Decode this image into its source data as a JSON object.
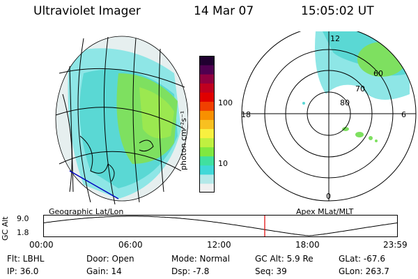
{
  "header": {
    "instrument": "Ultraviolet Imager",
    "date": "14 Mar 07",
    "time": "15:05:02 UT"
  },
  "left_panel": {
    "caption": "Geographic Lat/Lon"
  },
  "right_panel": {
    "caption": "Apex MLat/MLT",
    "mlt_labels": {
      "top": "12",
      "left": "18",
      "right": "6",
      "bottom": "0"
    },
    "lat_labels": [
      "60",
      "70",
      "80"
    ]
  },
  "colorbar": {
    "unit_label": "photon cm⁻²s⁻¹",
    "ticks": [
      "100",
      "10"
    ],
    "colors": [
      "#f0f0f0",
      "#b4e8e8",
      "#40d8d8",
      "#40e0a0",
      "#80e840",
      "#c0f040",
      "#f8f040",
      "#f8c020",
      "#f89000",
      "#f04000",
      "#e00000",
      "#c00020",
      "#900040",
      "#500050",
      "#200030"
    ]
  },
  "altitude_plot": {
    "ylabel": "GC Alt",
    "y_ticks": [
      "9.0",
      "1.8"
    ],
    "x_ticks": [
      "00:00",
      "06:00",
      "12:00",
      "18:00",
      "23:59"
    ],
    "marker_color": "#e00000"
  },
  "footer": {
    "filter": "Flt: LBHL",
    "ip": "IP: 36.0",
    "door": "Door: Open",
    "gain": "Gain: 14",
    "mode": "Mode: Normal",
    "dsp": "Dsp:   -7.8",
    "gc_alt": "GC Alt: 5.9 Re",
    "seq": "Seq: 39",
    "glat": "GLat: -67.6",
    "glon": "GLon: 263.7"
  }
}
